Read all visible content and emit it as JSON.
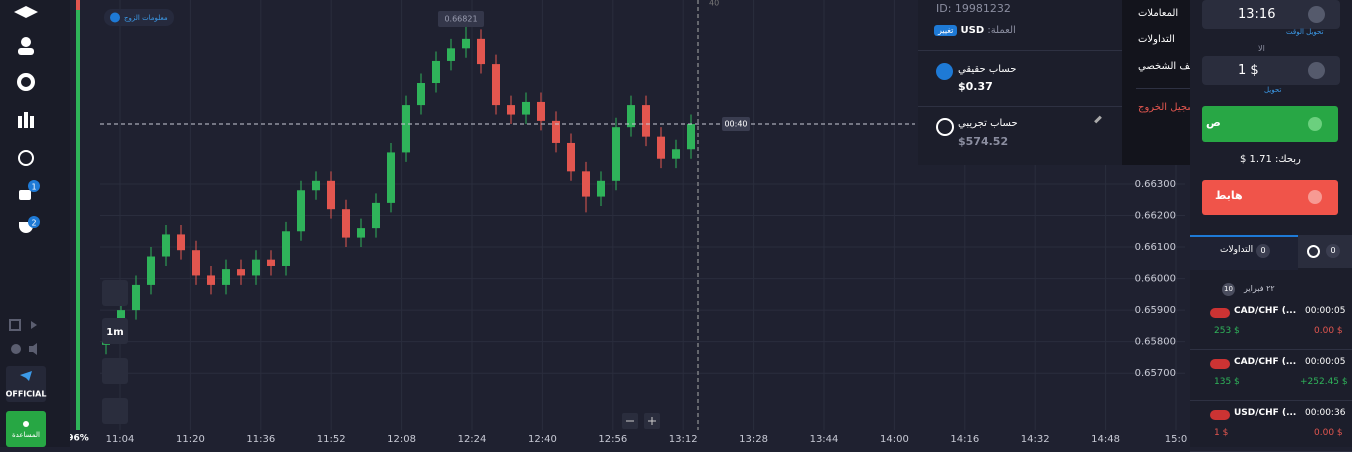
{
  "sidebar": {
    "badges": [
      "1",
      "2"
    ],
    "progress": "96%",
    "official": "OFFICIAL",
    "help": "المساعدة"
  },
  "chart_tools": {
    "pair_info": "معلومات الزوج",
    "timeframe": "1m",
    "countdown": "00:40",
    "crosshair_label": "40"
  },
  "chart_data": {
    "type": "candlestick",
    "high_label": "0.66821",
    "categories": [
      "11:04",
      "11:20",
      "11:36",
      "11:52",
      "12:08",
      "12:24",
      "12:40",
      "12:56",
      "13:12",
      "13:28",
      "13:44",
      "14:00",
      "14:16",
      "14:32",
      "14:48",
      "15:0"
    ],
    "open": [
      0.6579,
      0.6583,
      0.659,
      0.6598,
      0.6607,
      0.6614,
      0.6609,
      0.6601,
      0.6598,
      0.6603,
      0.6601,
      0.6606,
      0.6604,
      0.6615,
      0.6628,
      0.6631,
      0.6622,
      0.6613,
      0.6616,
      0.6624,
      0.664,
      0.6655,
      0.6662,
      0.6669,
      0.6673,
      0.6676,
      0.6668,
      0.6655,
      0.6652,
      0.6656,
      0.665,
      0.6643,
      0.6634,
      0.6626,
      0.6631,
      0.6648,
      0.6655,
      0.6645,
      0.6638,
      0.6641
    ],
    "high": [
      0.6586,
      0.6593,
      0.6601,
      0.661,
      0.6617,
      0.6617,
      0.6612,
      0.6604,
      0.6606,
      0.6606,
      0.6609,
      0.6609,
      0.6618,
      0.6631,
      0.6634,
      0.6634,
      0.6625,
      0.6619,
      0.6627,
      0.6643,
      0.6658,
      0.6665,
      0.6672,
      0.6676,
      0.66821,
      0.6679,
      0.6671,
      0.6658,
      0.6659,
      0.6659,
      0.6653,
      0.6646,
      0.6637,
      0.6634,
      0.6651,
      0.6658,
      0.6658,
      0.6648,
      0.6644,
      0.6652
    ],
    "low": [
      0.6576,
      0.658,
      0.6587,
      0.6595,
      0.6604,
      0.6606,
      0.6598,
      0.6595,
      0.6595,
      0.6598,
      0.6598,
      0.6601,
      0.6601,
      0.6612,
      0.6625,
      0.6619,
      0.661,
      0.661,
      0.6613,
      0.6621,
      0.6637,
      0.6652,
      0.6659,
      0.6666,
      0.667,
      0.6665,
      0.6652,
      0.6649,
      0.6649,
      0.6647,
      0.664,
      0.6631,
      0.6621,
      0.6623,
      0.6628,
      0.6645,
      0.6642,
      0.6635,
      0.6635,
      0.6638
    ],
    "close": [
      0.6583,
      0.659,
      0.6598,
      0.6607,
      0.6614,
      0.6609,
      0.6601,
      0.6598,
      0.6603,
      0.6601,
      0.6606,
      0.6604,
      0.6615,
      0.6628,
      0.6631,
      0.6622,
      0.6613,
      0.6616,
      0.6624,
      0.664,
      0.6655,
      0.6662,
      0.6669,
      0.6673,
      0.6676,
      0.6668,
      0.6655,
      0.6652,
      0.6656,
      0.665,
      0.6643,
      0.6634,
      0.6626,
      0.6631,
      0.6648,
      0.6655,
      0.6645,
      0.6638,
      0.6641,
      0.6649
    ],
    "up_color": "#2fb35a",
    "down_color": "#e2564f",
    "ylim": [
      0.6565,
      0.6688
    ],
    "yticks": [
      {
        "value": 0.657,
        "label": "0.65700"
      },
      {
        "value": 0.658,
        "label": "0.65800"
      },
      {
        "value": 0.659,
        "label": "0.65900"
      },
      {
        "value": 0.66,
        "label": "0.66000"
      },
      {
        "value": 0.661,
        "label": "0.66100"
      },
      {
        "value": 0.662,
        "label": "0.66200"
      },
      {
        "value": 0.663,
        "label": "0.66300"
      }
    ],
    "grid": true
  },
  "account_menu": {
    "id": "ID: 19981232",
    "currency_label": "العملة:",
    "currency": "USD",
    "change": "تغيير",
    "real_label": "حساب حقيقي",
    "real_balance": "$0.37",
    "demo_label": "حساب تجريبي",
    "demo_balance": "$574.52",
    "links": [
      "المعاملات",
      "التداولات",
      "الملف الشخصي"
    ],
    "logout": "تسجيل الخروج"
  },
  "trade_panel": {
    "time": "13:16",
    "time_hint": "تحويل الوقت",
    "amount_label": "الا",
    "amount": "1 $",
    "amount_hint": "تحويل",
    "up": "ص",
    "profit": "ربحك: 1.71 $",
    "down": "هابط",
    "tab_trades": "التداولات",
    "tab_trades_count": "0",
    "tab_clock_count": "0",
    "date": "٢٢ فبراير",
    "date_count": "10"
  },
  "trades": [
    {
      "pair": "CAD/CHF (...",
      "time": "00:00:05",
      "amount": "253 $",
      "result": "0.00 $"
    },
    {
      "pair": "CAD/CHF (...",
      "time": "00:00:05",
      "amount": "135 $",
      "result": "+252.45 $"
    },
    {
      "pair": "USD/CHF (...",
      "time": "00:00:36",
      "amount": "1 $",
      "result": "0.00 $"
    }
  ]
}
